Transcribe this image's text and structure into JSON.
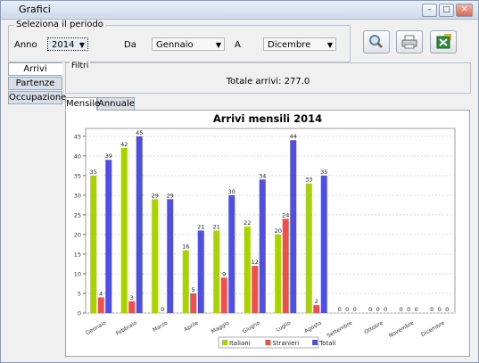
{
  "window": {
    "title": "Grafici"
  },
  "period": {
    "legend": "Seleziona il periodo",
    "anno_label": "Anno",
    "anno_value": "2014",
    "da_label": "Da",
    "da_value": "Gennaio",
    "a_label": "A",
    "a_value": "Dicembre"
  },
  "toolbar": {
    "search_icon": "magnifier-icon",
    "print_icon": "printer-icon",
    "export_icon": "excel-export-icon"
  },
  "side_tabs": [
    "Arrivi",
    "Partenze",
    "Occupazione"
  ],
  "filtri": {
    "legend": "Filtri",
    "total_text": "Totale arrivi: 277.0"
  },
  "sub_tabs": [
    "Mensile",
    "Annuale"
  ],
  "chart_data": {
    "type": "bar",
    "title": "Arrivi mensili 2014",
    "categories": [
      "Gennaio",
      "Febbraio",
      "Marzo",
      "Aprile",
      "Maggio",
      "Giugno",
      "Luglio",
      "Agosto",
      "Settembre",
      "Ottobre",
      "Novembre",
      "Dicembre"
    ],
    "series": [
      {
        "name": "Italiani",
        "color": "#a8d300",
        "values": [
          35,
          42,
          29,
          16,
          21,
          22,
          20,
          33,
          0,
          0,
          0,
          0
        ]
      },
      {
        "name": "Stranieri",
        "color": "#f0504b",
        "values": [
          4,
          3,
          0,
          5,
          9,
          12,
          24,
          2,
          0,
          0,
          0,
          0
        ]
      },
      {
        "name": "Totali",
        "color": "#4f4fe6",
        "values": [
          39,
          45,
          29,
          21,
          30,
          34,
          44,
          35,
          0,
          0,
          0,
          0
        ]
      }
    ],
    "ylim": [
      0,
      47
    ],
    "yticks": [
      0,
      5,
      10,
      15,
      20,
      25,
      30,
      35,
      40,
      45
    ],
    "grid": true,
    "legend": "bottom"
  }
}
